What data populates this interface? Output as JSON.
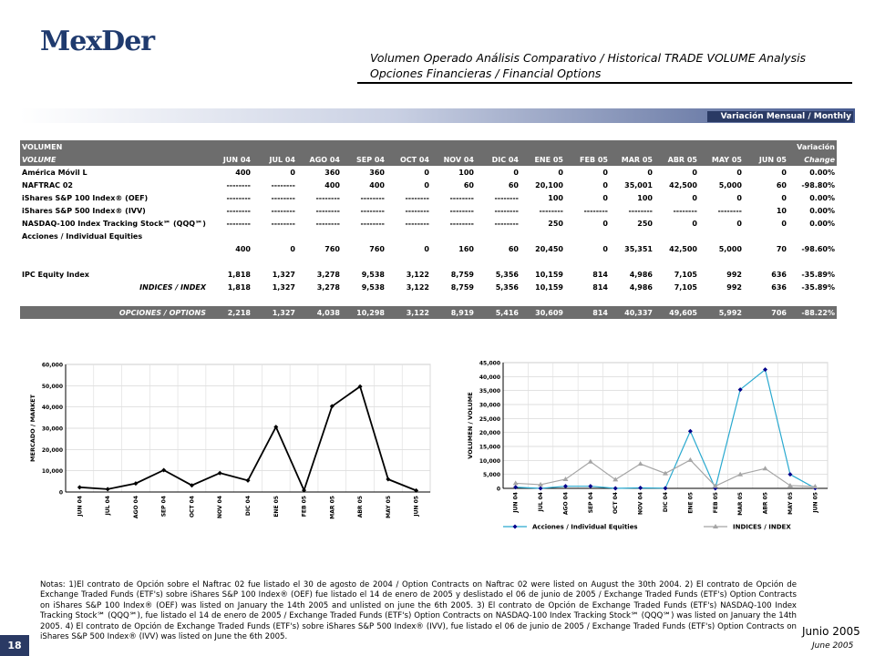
{
  "page": {
    "logo": "MexDer",
    "title_line1": "Volumen Operado Análisis Comparativo / Historical TRADE VOLUME Analysis",
    "title_line2": "Opciones Financieras / Financial Options",
    "band_label": "Variación Mensual / Monthly Change",
    "page_number": "18",
    "date_es": "Junio 2005",
    "date_en": "June 2005",
    "notes": "Notas: 1)El contrato de Opción sobre el Naftrac 02 fue listado el 30 de agosto de 2004 / Option Contracts on Naftrac 02 were listed on August the 30th 2004. 2) El contrato de Opción de Exchange Traded Funds (ETF's) sobre iShares S&P 100 Index® (OEF) fue listado el 14 de enero de 2005 y deslistado el 06 de junio de 2005 / Exchange Traded Funds (ETF's) Option Contracts on iShares S&P 100 Index® (OEF) was listed on January the 14th 2005 and unlisted on june the 6th 2005. 3) El contrato de Opción de Exchange Traded Funds (ETF's) NASDAQ-100 Index Tracking Stock℠ (QQQ℠), fue listado el 14 de enero de 2005 / Exchange Traded Funds (ETF's) Option Contracts on NASDAQ-100 Index Tracking Stock℠ (QQQ℠) was listed on January the 14th 2005. 4) El contrato de Opción de Exchange Traded Funds (ETF's) sobre iShares S&P 500 Index® (IVV), fue listado el 06 de junio de 2005 / Exchange Traded Funds (ETF's) Option Contracts on iShares S&P 500 Index® (IVV) was listed on June the 6th 2005."
  },
  "table": {
    "header_top_left": "VOLUMEN",
    "header_top_right": "Variación",
    "header_left": "VOLUME",
    "header_right": "Change",
    "months": [
      "JUN 04",
      "JUL 04",
      "AGO 04",
      "SEP 04",
      "OCT 04",
      "NOV 04",
      "DIC 04",
      "ENE 05",
      "FEB 05",
      "MAR 05",
      "ABR 05",
      "MAY 05",
      "JUN 05"
    ],
    "rows": [
      {
        "label": "América Móvil L",
        "cells": [
          "400",
          "0",
          "360",
          "360",
          "0",
          "100",
          "0",
          "0",
          "0",
          "0",
          "0",
          "0",
          "0"
        ],
        "change": "0.00%"
      },
      {
        "label": "NAFTRAC 02",
        "cells": [
          "--------",
          "--------",
          "400",
          "400",
          "0",
          "60",
          "60",
          "20,100",
          "0",
          "35,001",
          "42,500",
          "5,000",
          "60"
        ],
        "change": "-98.80%"
      },
      {
        "label": "iShares S&P 100 Index® (OEF)",
        "cells": [
          "--------",
          "--------",
          "--------",
          "--------",
          "--------",
          "--------",
          "--------",
          "100",
          "0",
          "100",
          "0",
          "0",
          "0"
        ],
        "change": "0.00%"
      },
      {
        "label": "iShares S&P 500 Index® (IVV)",
        "cells": [
          "--------",
          "--------",
          "--------",
          "--------",
          "--------",
          "--------",
          "--------",
          "--------",
          "--------",
          "--------",
          "--------",
          "--------",
          "10"
        ],
        "change": "0.00%"
      },
      {
        "label": "NASDAQ-100 Index Tracking Stock℠ (QQQ℠)",
        "cells": [
          "--------",
          "--------",
          "--------",
          "--------",
          "--------",
          "--------",
          "--------",
          "250",
          "0",
          "250",
          "0",
          "0",
          "0"
        ],
        "change": "0.00%"
      },
      {
        "label": "Acciones / Individual Equities",
        "cells": [
          "",
          "",
          "",
          "",
          "",
          "",
          "",
          "",
          "",
          "",
          "",
          "",
          ""
        ],
        "change": ""
      },
      {
        "label": "",
        "cells": [
          "400",
          "0",
          "760",
          "760",
          "0",
          "160",
          "60",
          "20,450",
          "0",
          "35,351",
          "42,500",
          "5,000",
          "70"
        ],
        "change": "-98.60%"
      },
      {
        "label": "IPC Equity Index",
        "cells": [
          "1,818",
          "1,327",
          "3,278",
          "9,538",
          "3,122",
          "8,759",
          "5,356",
          "10,159",
          "814",
          "4,986",
          "7,105",
          "992",
          "636"
        ],
        "change": "-35.89%"
      },
      {
        "label": "INDICES / INDEX",
        "cells": [
          "1,818",
          "1,327",
          "3,278",
          "9,538",
          "3,122",
          "8,759",
          "5,356",
          "10,159",
          "814",
          "4,986",
          "7,105",
          "992",
          "636"
        ],
        "change": "-35.89%"
      }
    ],
    "total": {
      "label": "OPCIONES / OPTIONS",
      "cells": [
        "2,218",
        "1,327",
        "4,038",
        "10,298",
        "3,122",
        "8,919",
        "5,416",
        "30,609",
        "814",
        "40,337",
        "49,605",
        "5,992",
        "706"
      ],
      "change": "-88.22%"
    }
  },
  "chart_data": [
    {
      "type": "line",
      "categories": [
        "JUN 04",
        "JUL 04",
        "AGO 04",
        "SEP 04",
        "OCT 04",
        "NOV 04",
        "DIC 04",
        "ENE 05",
        "FEB 05",
        "MAR 05",
        "ABR 05",
        "MAY 05",
        "JUN 05"
      ],
      "series": [
        {
          "name": "",
          "values": [
            2218,
            1327,
            4038,
            10298,
            3122,
            8919,
            5416,
            30609,
            814,
            40337,
            49605,
            5992,
            706
          ],
          "color": "#000000"
        }
      ],
      "ylabel": "MERCADO / MARKET",
      "ylim": [
        0,
        60000
      ],
      "yticks": [
        "0",
        "10,000",
        "20,000",
        "30,000",
        "40,000",
        "50,000",
        "60,000"
      ],
      "grid": true
    },
    {
      "type": "line",
      "categories": [
        "JUN 04",
        "JUL 04",
        "AGO 04",
        "SEP 04",
        "OCT 04",
        "NOV 04",
        "DIC 04",
        "ENE 05",
        "FEB 05",
        "MAR 05",
        "ABR 05",
        "MAY 05",
        "JUN 05"
      ],
      "series": [
        {
          "name": "Acciones / Individual Equities",
          "values": [
            400,
            0,
            760,
            760,
            0,
            160,
            60,
            20450,
            0,
            35351,
            42500,
            5000,
            70
          ],
          "color": "#29a9cf"
        },
        {
          "name": "INDICES / INDEX",
          "values": [
            1818,
            1327,
            3278,
            9538,
            3122,
            8759,
            5356,
            10159,
            814,
            4986,
            7105,
            992,
            636
          ],
          "color": "#a5a5a5"
        }
      ],
      "ylabel": "VOLUMEN / VOLUME",
      "ylim": [
        0,
        45000
      ],
      "yticks": [
        "0",
        "5,000",
        "10,000",
        "15,000",
        "20,000",
        "25,000",
        "30,000",
        "35,000",
        "40,000",
        "45,000"
      ],
      "grid": true,
      "legend": "bottom"
    }
  ]
}
